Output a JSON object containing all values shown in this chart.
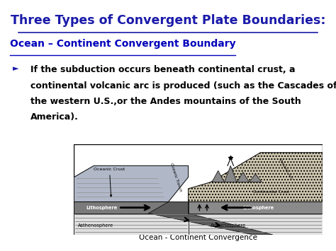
{
  "title": "Three Types of Convergent Plate Boundaries:",
  "subtitle": "Ocean – Continent Convergent Boundary",
  "bullet_line1": "If the subduction occurs beneath continental crust, a",
  "bullet_line2": "continental volcanic arc is produced (such as the Cascades of",
  "bullet_line3": "the western U.S.,or the Andes mountains of the South",
  "bullet_line4": "America).",
  "caption": "Ocean - Continent Convergence",
  "bg_color": "#ffffff",
  "title_color": "#1a1aaa",
  "subtitle_color": "#0000bb",
  "bullet_color": "#000000",
  "title_fontsize": 12.5,
  "subtitle_fontsize": 10,
  "bullet_fontsize": 9,
  "caption_fontsize": 7.5
}
